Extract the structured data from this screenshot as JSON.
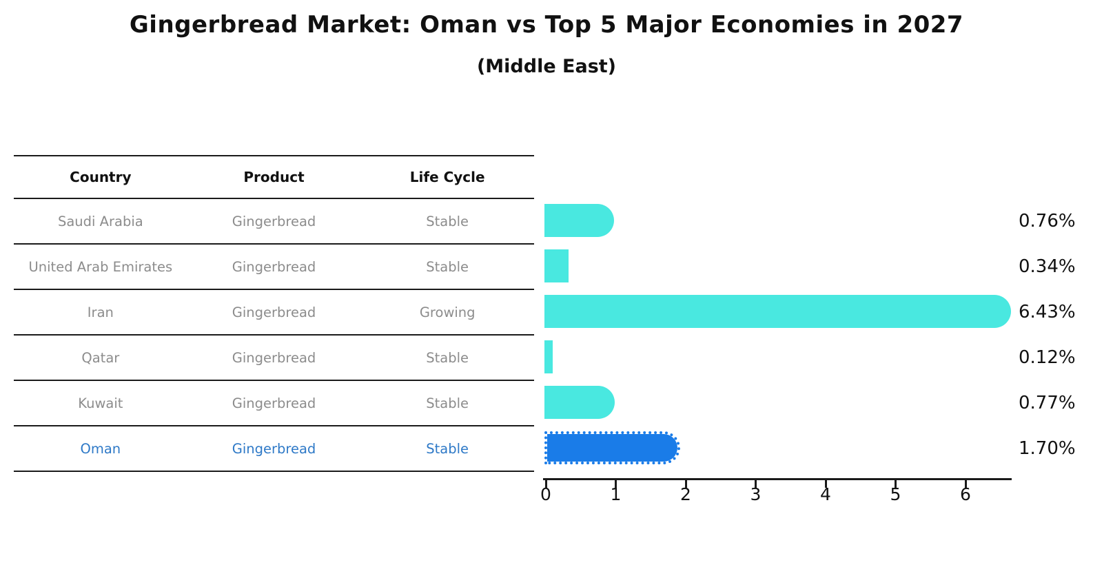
{
  "header": {
    "title": "Gingerbread Market: Oman vs Top 5 Major Economies in 2027",
    "subtitle": "(Middle East)"
  },
  "table": {
    "columns": [
      "Country",
      "Product",
      "Life Cycle"
    ],
    "rows": [
      {
        "country": "Saudi Arabia",
        "product": "Gingerbread",
        "life_cycle": "Stable",
        "highlighted": false
      },
      {
        "country": "United Arab Emirates",
        "product": "Gingerbread",
        "life_cycle": "Stable",
        "highlighted": false
      },
      {
        "country": "Iran",
        "product": "Gingerbread",
        "life_cycle": "Growing",
        "highlighted": false
      },
      {
        "country": "Qatar",
        "product": "Gingerbread",
        "life_cycle": "Stable",
        "highlighted": false
      },
      {
        "country": "Kuwait",
        "product": "Gingerbread",
        "life_cycle": "Stable",
        "highlighted": false
      },
      {
        "country": "Oman",
        "product": "Gingerbread",
        "life_cycle": "Stable",
        "highlighted": true
      }
    ]
  },
  "chart_data": {
    "type": "bar",
    "orientation": "horizontal",
    "title": "Gingerbread Market: Oman vs Top 5 Major Economies in 2027 (Middle East)",
    "categories": [
      "Saudi Arabia",
      "United Arab Emirates",
      "Iran",
      "Qatar",
      "Kuwait",
      "Oman"
    ],
    "values": [
      0.76,
      0.34,
      6.43,
      0.12,
      0.77,
      1.7
    ],
    "value_labels": [
      "0.76%",
      "0.34%",
      "6.43%",
      "0.12%",
      "0.77%",
      "1.70%"
    ],
    "x_ticks": [
      0,
      1,
      2,
      3,
      4,
      5,
      6
    ],
    "xlim": [
      0,
      6.7
    ],
    "grid": false,
    "legend": "none",
    "highlight_index": 5
  },
  "colors": {
    "bar": "#49e8e0",
    "highlight_bar": "#1a7ce8",
    "row_text": "#8c8c8c",
    "highlight_text": "#2e79c7",
    "axis": "#1a1a1a"
  }
}
